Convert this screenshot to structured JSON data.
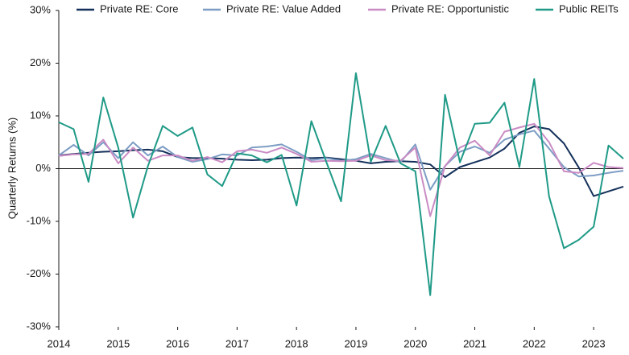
{
  "chart_data": {
    "type": "line",
    "y_label": "Quarterly Returns (%)",
    "x": [
      2014,
      2014.25,
      2014.5,
      2014.75,
      2015,
      2015.25,
      2015.5,
      2015.75,
      2016,
      2016.25,
      2016.5,
      2016.75,
      2017,
      2017.25,
      2017.5,
      2017.75,
      2018,
      2018.25,
      2018.5,
      2018.75,
      2019,
      2019.25,
      2019.5,
      2019.75,
      2020,
      2020.25,
      2020.5,
      2020.75,
      2021,
      2021.25,
      2021.5,
      2021.75,
      2022,
      2022.25,
      2022.5,
      2022.75,
      2023,
      2023.25,
      2023.5
    ],
    "xlim": [
      2014,
      2023.5
    ],
    "xticks": [
      2014,
      2015,
      2016,
      2017,
      2018,
      2019,
      2020,
      2021,
      2022,
      2023
    ],
    "ylim": [
      -30,
      30
    ],
    "yticks": [
      {
        "value": -30,
        "label": "-30%"
      },
      {
        "value": -20,
        "label": "-20%"
      },
      {
        "value": -10,
        "label": "-10%"
      },
      {
        "value": 0,
        "label": "0%"
      },
      {
        "value": 10,
        "label": "10%"
      },
      {
        "value": 20,
        "label": "20%"
      },
      {
        "value": 30,
        "label": "30%"
      }
    ],
    "grid": false,
    "legend": "top",
    "series": [
      {
        "name": "Private RE: Core",
        "color": "#14305a",
        "values": [
          2.5,
          2.8,
          3.0,
          3.2,
          3.3,
          3.5,
          3.6,
          3.3,
          2.2,
          2.0,
          2.0,
          1.9,
          1.7,
          1.6,
          1.7,
          2.0,
          2.1,
          2.0,
          2.1,
          1.8,
          1.5,
          1.0,
          1.3,
          1.4,
          1.3,
          0.8,
          -1.6,
          0.3,
          1.2,
          2.1,
          3.8,
          6.8,
          8.0,
          7.5,
          4.8,
          0.2,
          -5.2,
          -4.3,
          -3.4
        ]
      },
      {
        "name": "Private RE: Value Added",
        "color": "#7d9dc4",
        "values": [
          2.5,
          4.5,
          2.5,
          5.0,
          2.0,
          5.0,
          2.5,
          4.2,
          2.2,
          1.3,
          1.8,
          2.7,
          2.5,
          4.0,
          4.2,
          4.6,
          3.2,
          1.6,
          2.0,
          1.5,
          1.8,
          2.8,
          2.0,
          1.2,
          4.6,
          -4.0,
          0.5,
          3.2,
          4.2,
          3.0,
          5.5,
          6.5,
          7.2,
          3.8,
          0.3,
          -1.5,
          -1.3,
          -0.8,
          -0.4
        ]
      },
      {
        "name": "Private RE: Opportunistic",
        "color": "#c98bc4",
        "values": [
          2.4,
          2.7,
          2.8,
          5.5,
          1.0,
          4.0,
          1.5,
          2.5,
          2.5,
          1.5,
          2.2,
          1.2,
          3.3,
          3.6,
          3.0,
          4.0,
          2.8,
          1.3,
          1.5,
          1.4,
          1.5,
          2.5,
          1.6,
          1.5,
          4.0,
          -9.0,
          0.5,
          4.0,
          5.3,
          2.5,
          7.0,
          7.8,
          8.5,
          5.0,
          -0.5,
          -0.8,
          1.1,
          0.3,
          0.1
        ]
      },
      {
        "name": "Public REITs",
        "color": "#1f9a87",
        "values": [
          8.8,
          7.5,
          -2.5,
          13.5,
          4.0,
          -9.3,
          0.5,
          8.1,
          6.2,
          7.8,
          -1.1,
          -3.3,
          2.9,
          2.5,
          1.2,
          2.6,
          -7.0,
          9.0,
          1.3,
          -6.2,
          18.1,
          1.3,
          8.1,
          1.0,
          -0.5,
          -24.0,
          14.0,
          1.2,
          8.5,
          8.7,
          12.5,
          0.3,
          17.0,
          -5.3,
          -15.1,
          -13.5,
          -11.0,
          4.4,
          1.9
        ]
      }
    ]
  }
}
